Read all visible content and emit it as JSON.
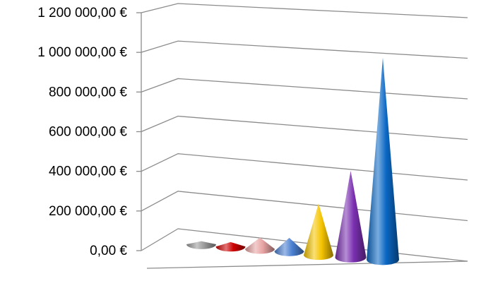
{
  "chart_data": {
    "type": "bar",
    "shape": "3d-cone",
    "title": "",
    "xlabel": "",
    "ylabel": "",
    "ylim": [
      0,
      1200000
    ],
    "grid": true,
    "legend": "none",
    "y_ticks": [
      {
        "value": 0,
        "label": "0,00 €"
      },
      {
        "value": 200000,
        "label": "200 000,00 €"
      },
      {
        "value": 400000,
        "label": "400 000,00 €"
      },
      {
        "value": 600000,
        "label": "600 000,00 €"
      },
      {
        "value": 800000,
        "label": "800 000,00 €"
      },
      {
        "value": 1000000,
        "label": "1 000 000,00 €"
      },
      {
        "value": 1200000,
        "label": "1 200 000,00 €"
      }
    ],
    "categories": [
      "",
      "",
      "",
      "",
      "",
      "",
      ""
    ],
    "values": [
      15000,
      22000,
      55000,
      65000,
      250000,
      420000,
      980000
    ],
    "colors": [
      "#9a9a9a",
      "#cc0000",
      "#e8a3a3",
      "#4a7fd1",
      "#f5c400",
      "#7a2fb0",
      "#0b68c4"
    ]
  }
}
